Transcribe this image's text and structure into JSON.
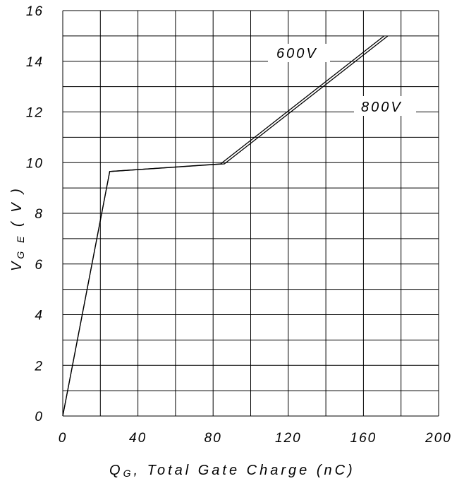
{
  "chart_data": {
    "type": "line",
    "xlabel": "Q",
    "xlabel_sub": "G",
    "xlabel_rest": ", Total Gate Charge (nC)",
    "ylabel": "V",
    "ylabel_sub": "G E",
    "ylabel_rest": " ( V )",
    "xlim": [
      0,
      200
    ],
    "ylim": [
      0,
      16
    ],
    "xticks": [
      "0",
      "40",
      "80",
      "120",
      "160",
      "200"
    ],
    "yticks": [
      "0",
      "2",
      "4",
      "6",
      "8",
      "10",
      "12",
      "14",
      "16"
    ],
    "grid": true,
    "series": [
      {
        "name": "600V",
        "x": [
          0,
          25,
          84,
          171
        ],
        "y": [
          0,
          9.65,
          9.95,
          15
        ]
      },
      {
        "name": "800V",
        "x": [
          0,
          25,
          86,
          173
        ],
        "y": [
          0,
          9.65,
          9.95,
          15
        ]
      }
    ]
  }
}
